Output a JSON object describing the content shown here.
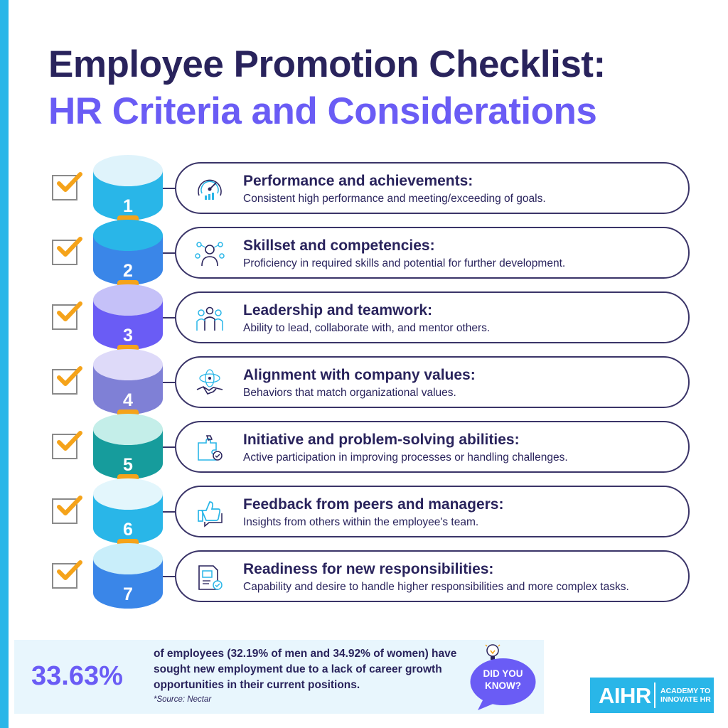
{
  "title": {
    "line1": "Employee Promotion Checklist:",
    "line2": "HR Criteria and Considerations"
  },
  "colors": {
    "dark_navy": "#29235c",
    "purple_accent": "#6a5cf5",
    "cyan": "#29b6e8",
    "orange": "#f5a31a"
  },
  "items": [
    {
      "number": "1",
      "title": "Performance and achievements:",
      "desc": "Consistent high performance and meeting/exceeding of goals.",
      "icon": "gauge-icon",
      "top_color": "#dff3fb",
      "body_color": "#29b6e8"
    },
    {
      "number": "2",
      "title": "Skillset and competencies:",
      "desc": "Proficiency in required skills and potential for further development.",
      "icon": "person-skills-icon",
      "top_color": "#29b6e8",
      "body_color": "#3a86e8"
    },
    {
      "number": "3",
      "title": "Leadership and teamwork:",
      "desc": "Ability to lead, collaborate with, and mentor others.",
      "icon": "team-icon",
      "top_color": "#c5c1f8",
      "body_color": "#6a5cf5"
    },
    {
      "number": "4",
      "title": "Alignment with company values:",
      "desc": "Behaviors that match organizational values.",
      "icon": "handshake-icon",
      "top_color": "#dedaf9",
      "body_color": "#7f80d6"
    },
    {
      "number": "5",
      "title": "Initiative and problem-solving abilities:",
      "desc": "Active participation in improving processes or handling challenges.",
      "icon": "puzzle-icon",
      "top_color": "#c4eee9",
      "body_color": "#169c9c"
    },
    {
      "number": "6",
      "title": "Feedback from peers and managers:",
      "desc": "Insights from others within the employee's team.",
      "icon": "thumbs-up-icon",
      "top_color": "#e3f6fc",
      "body_color": "#29b6e8"
    },
    {
      "number": "7",
      "title": "Readiness for new responsibilities:",
      "desc": "Capability and desire to handle higher responsibilities and more complex tasks.",
      "icon": "document-check-icon",
      "top_color": "#c9eefa",
      "body_color": "#3a86e8"
    }
  ],
  "stat": {
    "value": "33.63%",
    "text": "of employees (32.19% of men and 34.92% of women) have sought new employment due to a lack of career growth opportunities in their current positions.",
    "source": "*Source: Nectar"
  },
  "did_you_know": {
    "line1": "DID YOU",
    "line2": "KNOW?"
  },
  "logo": {
    "main": "AIHR",
    "sub_line1": "ACADEMY TO",
    "sub_line2": "INNOVATE HR"
  }
}
